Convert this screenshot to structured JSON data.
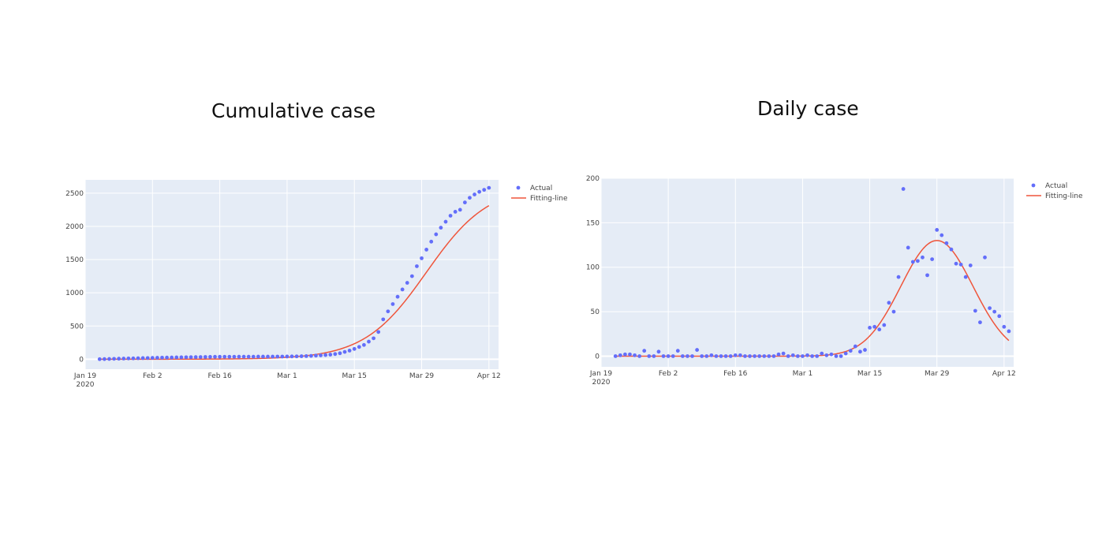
{
  "chart_data": [
    {
      "type": "scatter",
      "title": "Cumulative case",
      "xlabel": "",
      "ylabel": "",
      "x_start": "2020-01-22",
      "xlim": [
        "2020-01-19",
        "2020-04-14"
      ],
      "ylim": [
        -150,
        2700
      ],
      "x_ticks": [
        "Jan 19",
        "Feb 2",
        "Feb 16",
        "Mar 1",
        "Mar 15",
        "Mar 29",
        "Apr 12"
      ],
      "x_tick_year": "2020",
      "y_ticks": [
        "0",
        "500",
        "1000",
        "1500",
        "2000",
        "2500"
      ],
      "grid": true,
      "legend_position": "right",
      "series": [
        {
          "name": "Actual",
          "mode": "markers",
          "color": "#636efa",
          "values": [
            1,
            2,
            4,
            6,
            8,
            10,
            12,
            13,
            15,
            17,
            18,
            20,
            22,
            24,
            25,
            26,
            28,
            29,
            30,
            31,
            32,
            33,
            34,
            35,
            36,
            36,
            37,
            37,
            37,
            38,
            38,
            38,
            38,
            39,
            39,
            39,
            39,
            40,
            40,
            41,
            42,
            43,
            45,
            47,
            50,
            54,
            58,
            63,
            69,
            78,
            90,
            110,
            130,
            155,
            185,
            215,
            265,
            315,
            410,
            600,
            720,
            830,
            940,
            1050,
            1150,
            1250,
            1400,
            1520,
            1650,
            1770,
            1880,
            1980,
            2070,
            2160,
            2220,
            2250,
            2360,
            2430,
            2480,
            2520,
            2550,
            2580
          ]
        },
        {
          "name": "Fitting-line",
          "mode": "lines",
          "color": "#ef553b",
          "model": "logistic",
          "K": 2620,
          "r": 0.155,
          "t0": 68
        }
      ]
    },
    {
      "type": "scatter",
      "title": "Daily case",
      "xlabel": "",
      "ylabel": "",
      "x_start": "2020-01-22",
      "xlim": [
        "2020-01-19",
        "2020-04-14"
      ],
      "ylim": [
        -12,
        200
      ],
      "x_ticks": [
        "Jan 19",
        "Feb 2",
        "Feb 16",
        "Mar 1",
        "Mar 15",
        "Mar 29",
        "Apr 12"
      ],
      "x_tick_year": "2020",
      "y_ticks": [
        "0",
        "50",
        "100",
        "150",
        "200"
      ],
      "grid": true,
      "legend_position": "right",
      "series": [
        {
          "name": "Actual",
          "mode": "markers",
          "color": "#636efa",
          "values": [
            0,
            1,
            2,
            2,
            1,
            0,
            6,
            0,
            0,
            5,
            0,
            0,
            0,
            6,
            0,
            0,
            0,
            7,
            0,
            0,
            1,
            0,
            0,
            0,
            0,
            1,
            1,
            0,
            0,
            0,
            0,
            0,
            0,
            0,
            2,
            3,
            0,
            1,
            0,
            0,
            1,
            0,
            0,
            3,
            1,
            2,
            0,
            0,
            3,
            6,
            11,
            5,
            7,
            32,
            33,
            30,
            35,
            60,
            50,
            89,
            188,
            122,
            106,
            107,
            111,
            91,
            109,
            142,
            136,
            127,
            120,
            104,
            103,
            89,
            102,
            51,
            38,
            111,
            54,
            50,
            45,
            33,
            28
          ]
        },
        {
          "name": "Fitting-line",
          "mode": "lines",
          "color": "#ef553b",
          "model": "gaussian",
          "amplitude": 130,
          "center": 67,
          "sigma": 7.5
        }
      ]
    }
  ]
}
